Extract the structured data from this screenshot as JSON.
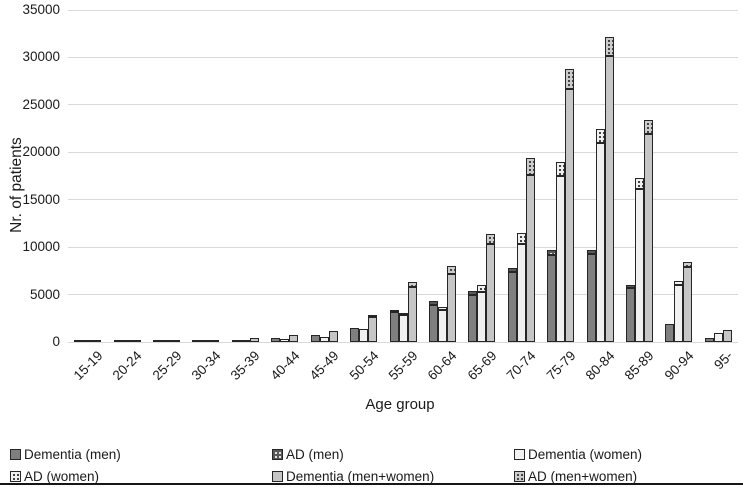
{
  "figure": {
    "y_axis_title": "Nr. of patients",
    "x_axis_title": "Age group"
  },
  "chart_data": {
    "type": "bar",
    "title": "",
    "xlabel": "Age group",
    "ylabel": "Nr. of patients",
    "ylim": [
      0,
      35000
    ],
    "yticks": [
      0,
      5000,
      10000,
      15000,
      20000,
      25000,
      30000,
      35000
    ],
    "grid": "horizontal-light-gray",
    "legend_position": "bottom",
    "legend_columns": 3,
    "stacking": "each AD series is drawn as a patterned cap stacked on top of its corresponding Dementia bar; 3 stacked bars per age group (men, women, men+women)",
    "categories": [
      "15-19",
      "20-24",
      "25-29",
      "30-34",
      "35-39",
      "40-44",
      "45-49",
      "50-54",
      "55-59",
      "60-64",
      "65-69",
      "70-74",
      "75-79",
      "80-84",
      "85-89",
      "90-94",
      "95-"
    ],
    "series": [
      {
        "name": "Dementia (men)",
        "bar": 0,
        "role": "base",
        "color": "#7f7f7f",
        "pattern": "solid",
        "values": [
          45,
          64,
          72,
          110,
          255,
          385,
          710,
          1480,
          3150,
          3850,
          4980,
          7400,
          9200,
          9300,
          5700,
          1850,
          400
        ]
      },
      {
        "name": "AD (men)",
        "bar": 0,
        "role": "cap",
        "color": "#595959",
        "pattern": "dots",
        "dot_color": "#eeeeee",
        "values": [
          5,
          6,
          8,
          10,
          25,
          35,
          60,
          120,
          250,
          450,
          420,
          400,
          500,
          400,
          300,
          150,
          50
        ]
      },
      {
        "name": "Dementia (women)",
        "bar": 1,
        "role": "base",
        "color": "#f1f1f1",
        "pattern": "solid",
        "values": [
          36,
          55,
          64,
          90,
          210,
          320,
          550,
          1350,
          2900,
          3350,
          5260,
          10300,
          17450,
          21000,
          16150,
          6050,
          950
        ]
      },
      {
        "name": "AD (women)",
        "bar": 1,
        "role": "cap",
        "color": "#f1f1f1",
        "pattern": "dots",
        "dot_color": "#333333",
        "values": [
          4,
          5,
          6,
          10,
          20,
          30,
          50,
          100,
          200,
          350,
          740,
          1200,
          1550,
          1500,
          1150,
          350,
          100
        ]
      },
      {
        "name": "Dementia (men+women)",
        "bar": 2,
        "role": "base",
        "color": "#c6c6c6",
        "pattern": "solid",
        "values": [
          82,
          118,
          136,
          200,
          455,
          690,
          1200,
          2680,
          5820,
          7200,
          10350,
          17600,
          26700,
          30200,
          21950,
          7900,
          1300
        ]
      },
      {
        "name": "AD (men+women)",
        "bar": 2,
        "role": "cap",
        "color": "#cccccc",
        "pattern": "dots",
        "dot_color": "#3a3a3a",
        "values": [
          8,
          12,
          14,
          20,
          45,
          60,
          100,
          220,
          480,
          800,
          1050,
          1800,
          2100,
          2000,
          1450,
          500,
          140
        ]
      }
    ]
  },
  "colors": {
    "gridline": "#d9d9d9",
    "bar_outline": "#262626",
    "text": "#1a1a1a",
    "bottom_rule": "#161616"
  }
}
